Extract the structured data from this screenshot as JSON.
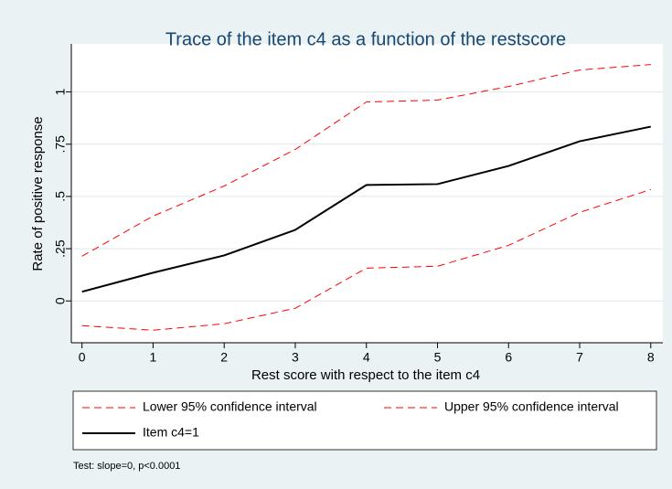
{
  "chart_data": {
    "type": "line",
    "title": "Trace of the item c4 as a function of the restscore",
    "xlabel": "Rest score with respect to the item c4",
    "ylabel": "Rate of positive response",
    "note": "Test: slope=0, p<0.0001",
    "x": [
      0,
      1,
      2,
      3,
      4,
      5,
      6,
      7,
      8
    ],
    "xlim": [
      -0.15,
      8.17
    ],
    "xticks": [
      0,
      1,
      2,
      3,
      4,
      5,
      6,
      7,
      8
    ],
    "ylim": [
      -0.2,
      1.23
    ],
    "yticks": [
      0,
      {
        "value": 0.25,
        "label": ".25"
      },
      {
        "value": 0.5,
        "label": ".5"
      },
      {
        "value": 0.75,
        "label": ".75"
      },
      1
    ],
    "grid": true,
    "series": [
      {
        "name": "Lower 95% confidence interval",
        "color": "#ff0000",
        "dashed": true,
        "values": [
          -0.118,
          -0.14,
          -0.109,
          -0.035,
          0.157,
          0.166,
          0.266,
          0.424,
          0.533
        ]
      },
      {
        "name": "Upper 95% confidence interval",
        "color": "#ff0000",
        "dashed": true,
        "values": [
          0.214,
          0.406,
          0.55,
          0.725,
          0.952,
          0.961,
          1.026,
          1.105,
          1.131
        ]
      },
      {
        "name": "Item c4=1",
        "color": "#000000",
        "dashed": false,
        "values": [
          0.044,
          0.135,
          0.218,
          0.34,
          0.555,
          0.559,
          0.646,
          0.764,
          0.834
        ]
      }
    ]
  }
}
